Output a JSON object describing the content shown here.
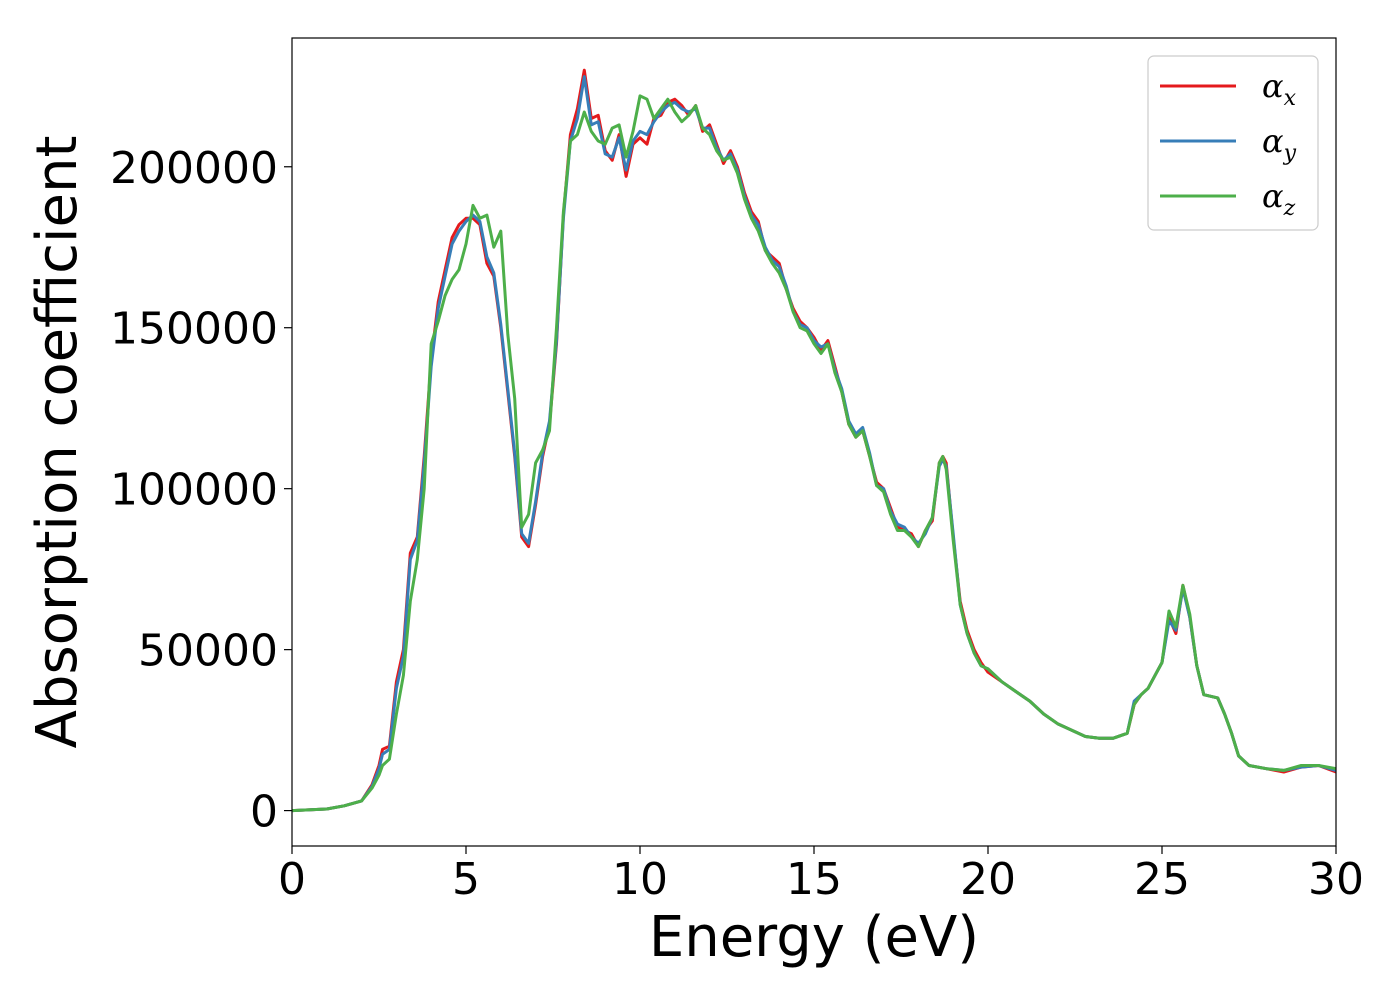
{
  "chart_data": {
    "type": "line",
    "title": "",
    "xlabel": "Energy (eV)",
    "ylabel": "Absorption coefficient",
    "xlim": [
      0,
      30
    ],
    "ylim": [
      -11000,
      240000
    ],
    "xticks": [
      0,
      5,
      10,
      15,
      20,
      25,
      30
    ],
    "yticks": [
      0,
      50000,
      100000,
      150000,
      200000
    ],
    "grid": false,
    "legend_position": "top-right",
    "series": [
      {
        "name": "α",
        "subscript": "x",
        "color": "#e41a1c",
        "x": [
          0,
          1,
          1.5,
          2,
          2.3,
          2.5,
          2.6,
          2.8,
          3,
          3.2,
          3.4,
          3.6,
          3.8,
          4,
          4.2,
          4.4,
          4.6,
          4.8,
          5,
          5.2,
          5.4,
          5.6,
          5.8,
          6,
          6.2,
          6.4,
          6.6,
          6.8,
          7,
          7.2,
          7.4,
          7.6,
          7.8,
          8,
          8.2,
          8.4,
          8.6,
          8.8,
          9,
          9.2,
          9.4,
          9.6,
          9.8,
          10,
          10.2,
          10.4,
          10.6,
          10.8,
          11,
          11.2,
          11.4,
          11.6,
          11.8,
          12,
          12.2,
          12.4,
          12.6,
          12.8,
          13,
          13.2,
          13.4,
          13.6,
          13.8,
          14,
          14.2,
          14.4,
          14.6,
          14.8,
          15,
          15.2,
          15.4,
          15.6,
          15.8,
          16,
          16.2,
          16.4,
          16.6,
          16.8,
          17,
          17.2,
          17.4,
          17.6,
          17.8,
          18,
          18.2,
          18.4,
          18.6,
          18.7,
          18.8,
          19,
          19.2,
          19.4,
          19.6,
          19.8,
          20,
          20.4,
          20.8,
          21.2,
          21.6,
          22,
          22.4,
          22.8,
          23.2,
          23.6,
          24,
          24.2,
          24.4,
          24.6,
          24.8,
          25,
          25.2,
          25.4,
          25.6,
          25.8,
          26,
          26.2,
          26.6,
          26.8,
          27,
          27.2,
          27.5,
          28,
          28.5,
          29,
          29.5,
          30
        ],
        "values": [
          0,
          500,
          1500,
          3000,
          8000,
          14000,
          19000,
          20000,
          40000,
          50000,
          80000,
          85000,
          110000,
          140000,
          158000,
          168000,
          178000,
          182000,
          184000,
          184000,
          182000,
          170000,
          166000,
          150000,
          130000,
          110000,
          85000,
          82000,
          95000,
          110000,
          120000,
          145000,
          185000,
          210000,
          218000,
          230000,
          215000,
          216000,
          205000,
          202000,
          210000,
          197000,
          207000,
          209000,
          207000,
          215000,
          216000,
          220000,
          221000,
          219000,
          216000,
          219000,
          211000,
          213000,
          207000,
          201000,
          205000,
          200000,
          192000,
          186000,
          183000,
          174000,
          172000,
          170000,
          162000,
          156000,
          152000,
          150000,
          147000,
          143000,
          146000,
          138000,
          130000,
          120000,
          116000,
          118000,
          110000,
          102000,
          100000,
          94000,
          88000,
          87000,
          86000,
          82000,
          87000,
          90000,
          108000,
          110000,
          108000,
          85000,
          65000,
          56000,
          50000,
          46000,
          43000,
          40000,
          37000,
          34000,
          30000,
          27000,
          25000,
          23000,
          22500,
          22500,
          24000,
          33000,
          36000,
          38000,
          42000,
          46000,
          60000,
          55000,
          70000,
          60000,
          45000,
          36000,
          35000,
          30000,
          24000,
          17000,
          14000,
          13000,
          12000,
          13500,
          14000,
          12000
        ]
      },
      {
        "name": "α",
        "subscript": "y",
        "color": "#377eb8",
        "x": [
          0,
          1,
          1.5,
          2,
          2.3,
          2.5,
          2.6,
          2.8,
          3,
          3.2,
          3.4,
          3.6,
          3.8,
          4,
          4.2,
          4.4,
          4.6,
          4.8,
          5,
          5.2,
          5.4,
          5.6,
          5.8,
          6,
          6.2,
          6.4,
          6.6,
          6.8,
          7,
          7.2,
          7.4,
          7.6,
          7.8,
          8,
          8.2,
          8.4,
          8.6,
          8.8,
          9,
          9.2,
          9.4,
          9.6,
          9.8,
          10,
          10.2,
          10.4,
          10.6,
          10.8,
          11,
          11.2,
          11.4,
          11.6,
          11.8,
          12,
          12.2,
          12.4,
          12.6,
          12.8,
          13,
          13.2,
          13.4,
          13.6,
          13.8,
          14,
          14.2,
          14.4,
          14.6,
          14.8,
          15,
          15.2,
          15.4,
          15.6,
          15.8,
          16,
          16.2,
          16.4,
          16.6,
          16.8,
          17,
          17.2,
          17.4,
          17.6,
          17.8,
          18,
          18.2,
          18.4,
          18.6,
          18.7,
          18.8,
          19,
          19.2,
          19.4,
          19.6,
          19.8,
          20,
          20.4,
          20.8,
          21.2,
          21.6,
          22,
          22.4,
          22.8,
          23.2,
          23.6,
          24,
          24.2,
          24.4,
          24.6,
          24.8,
          25,
          25.2,
          25.4,
          25.6,
          25.8,
          26,
          26.2,
          26.6,
          26.8,
          27,
          27.2,
          27.5,
          28,
          28.5,
          29,
          29.5,
          30
        ],
        "values": [
          0,
          500,
          1500,
          3000,
          7500,
          13000,
          17500,
          19000,
          38000,
          48000,
          78000,
          84000,
          108000,
          138000,
          156000,
          166000,
          176000,
          180000,
          183000,
          185000,
          183000,
          172000,
          167000,
          151000,
          131000,
          111000,
          86000,
          83000,
          96000,
          111000,
          121000,
          146000,
          184000,
          208000,
          215000,
          228000,
          213000,
          214000,
          204000,
          203000,
          209000,
          199000,
          208000,
          211000,
          210000,
          214000,
          217000,
          219000,
          220000,
          218000,
          217000,
          218000,
          212000,
          212000,
          206000,
          202000,
          204000,
          199000,
          191000,
          185000,
          182000,
          175000,
          171000,
          169000,
          163000,
          155000,
          151000,
          150000,
          146000,
          144000,
          145000,
          137000,
          131000,
          121000,
          117000,
          119000,
          111000,
          101000,
          100000,
          93000,
          89000,
          88000,
          85000,
          83000,
          86000,
          91000,
          107000,
          109000,
          107000,
          86000,
          64000,
          55000,
          49000,
          45000,
          44000,
          40000,
          37000,
          34000,
          30000,
          27000,
          25000,
          23000,
          22500,
          22500,
          24000,
          34000,
          36000,
          38000,
          42000,
          46000,
          59000,
          56000,
          69000,
          60000,
          45000,
          36000,
          35000,
          30000,
          24000,
          17000,
          14000,
          13000,
          12500,
          13500,
          14000,
          12500
        ]
      },
      {
        "name": "α",
        "subscript": "z",
        "color": "#4daf4a",
        "x": [
          0,
          1,
          1.5,
          2,
          2.3,
          2.5,
          2.6,
          2.8,
          3,
          3.2,
          3.4,
          3.6,
          3.8,
          4,
          4.2,
          4.4,
          4.6,
          4.8,
          5,
          5.2,
          5.4,
          5.6,
          5.8,
          6,
          6.2,
          6.4,
          6.6,
          6.8,
          7,
          7.2,
          7.4,
          7.6,
          7.8,
          8,
          8.2,
          8.4,
          8.6,
          8.8,
          9,
          9.2,
          9.4,
          9.6,
          9.8,
          10,
          10.2,
          10.4,
          10.6,
          10.8,
          11,
          11.2,
          11.4,
          11.6,
          11.8,
          12,
          12.2,
          12.4,
          12.6,
          12.8,
          13,
          13.2,
          13.4,
          13.6,
          13.8,
          14,
          14.2,
          14.4,
          14.6,
          14.8,
          15,
          15.2,
          15.4,
          15.6,
          15.8,
          16,
          16.2,
          16.4,
          16.6,
          16.8,
          17,
          17.2,
          17.4,
          17.6,
          17.8,
          18,
          18.2,
          18.4,
          18.6,
          18.7,
          18.8,
          19,
          19.2,
          19.4,
          19.6,
          19.8,
          20,
          20.4,
          20.8,
          21.2,
          21.6,
          22,
          22.4,
          22.8,
          23.2,
          23.6,
          24,
          24.2,
          24.4,
          24.6,
          24.8,
          25,
          25.2,
          25.4,
          25.6,
          25.8,
          26,
          26.2,
          26.6,
          26.8,
          27,
          27.2,
          27.5,
          28,
          28.5,
          29,
          29.5,
          30
        ],
        "values": [
          0,
          500,
          1500,
          3000,
          7000,
          11000,
          14000,
          16000,
          30000,
          42000,
          65000,
          78000,
          100000,
          145000,
          152000,
          160000,
          165000,
          168000,
          176000,
          188000,
          184000,
          185000,
          175000,
          180000,
          148000,
          128000,
          88000,
          92000,
          108000,
          112000,
          118000,
          150000,
          186000,
          208000,
          210000,
          217000,
          211000,
          208000,
          207000,
          212000,
          213000,
          203000,
          211000,
          222000,
          221000,
          215000,
          218000,
          221000,
          217000,
          214000,
          216000,
          219000,
          212000,
          210000,
          205000,
          202000,
          203000,
          198000,
          190000,
          184000,
          180000,
          174000,
          170000,
          167000,
          162000,
          155000,
          150000,
          149000,
          145000,
          142000,
          145000,
          136000,
          130000,
          120000,
          116000,
          118000,
          110000,
          101000,
          99000,
          92000,
          87000,
          87000,
          85000,
          82000,
          87000,
          91000,
          108000,
          110000,
          106000,
          84000,
          64000,
          55000,
          49000,
          45000,
          44000,
          40000,
          37000,
          34000,
          30000,
          27000,
          25000,
          23000,
          22500,
          22500,
          24000,
          33000,
          36000,
          38000,
          42000,
          46000,
          62000,
          57000,
          70000,
          61000,
          45000,
          36000,
          35000,
          30000,
          24000,
          17000,
          14000,
          13000,
          12500,
          14000,
          14000,
          13000
        ]
      }
    ]
  }
}
